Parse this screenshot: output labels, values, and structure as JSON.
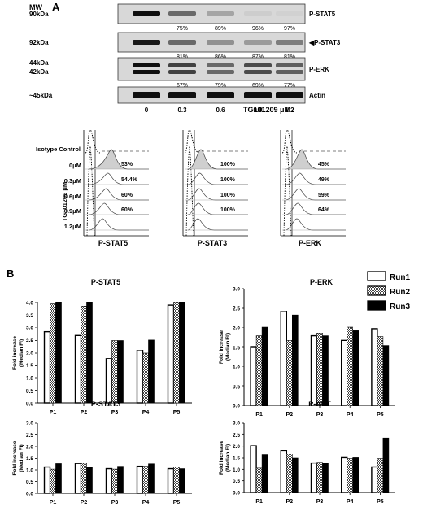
{
  "panelA": {
    "letter": "A",
    "mw_label": "MW",
    "blots": [
      {
        "name": "P-STAT5",
        "mw": "90kDa",
        "pct": [
          "75%",
          "89%",
          "96%",
          "97%"
        ]
      },
      {
        "name": "P-STAT3",
        "mw": "92kDa",
        "pct": [
          "81%",
          "86%",
          "87%",
          "81%"
        ]
      },
      {
        "name": "P-ERK",
        "mw": "44kDa",
        "mw2": "42kDa",
        "pct": [
          "67%",
          "79%",
          "69%",
          "77%"
        ]
      },
      {
        "name": "Actin",
        "mw": "~45kDa",
        "pct": []
      }
    ],
    "doses": [
      "0",
      "0.3",
      "0.6",
      "0.9",
      "1.2"
    ],
    "dose_label": "TG101209 μM",
    "flow": {
      "row_labels": [
        "Isotype Control",
        "0μM",
        "0.3μM",
        "0.6μM",
        "0.9μM",
        "1.2μM"
      ],
      "yaxis_label": "TG101209 μM",
      "panels": [
        {
          "title": "P-STAT5",
          "pct": [
            "53%",
            "54.4%",
            "60%",
            "60%"
          ]
        },
        {
          "title": "P-STAT3",
          "pct": [
            "100%",
            "100%",
            "100%",
            "100%"
          ]
        },
        {
          "title": "P-ERK",
          "pct": [
            "45%",
            "49%",
            "59%",
            "64%"
          ]
        }
      ]
    }
  },
  "panelB": {
    "letter": "B",
    "legend": [
      "Run1",
      "Run2",
      "Run3"
    ],
    "colors": {
      "run1": "#ffffff",
      "run2": "#9a9a9a",
      "run3": "#000000"
    }
  },
  "chart_data": [
    {
      "type": "bar",
      "title": "P-STAT5",
      "categories": [
        "P1",
        "P2",
        "P3",
        "P4",
        "P5"
      ],
      "ylabel": "Fold increase (Median FI)",
      "ylim": [
        0,
        4.0
      ],
      "yticks": [
        "0.0",
        "0.5",
        "1.0",
        "1.5",
        "2.0",
        "2.5",
        "3.0",
        "3.5",
        "4.0"
      ],
      "series": [
        {
          "name": "Run1",
          "values": [
            2.85,
            2.7,
            1.78,
            2.1,
            3.9
          ]
        },
        {
          "name": "Run2",
          "values": [
            3.95,
            3.83,
            2.5,
            2.0,
            4.0
          ]
        },
        {
          "name": "Run3",
          "values": [
            4.0,
            4.0,
            2.5,
            2.52,
            4.0
          ]
        }
      ]
    },
    {
      "type": "bar",
      "title": "P-ERK",
      "categories": [
        "P1",
        "P2",
        "P3",
        "P4",
        "P5"
      ],
      "ylabel": "Fold increase (Median FI)",
      "ylim": [
        0,
        3.0
      ],
      "yticks": [
        "0.0",
        "0.5",
        "1.0",
        "1.5",
        "2.0",
        "2.5",
        "3.0"
      ],
      "series": [
        {
          "name": "Run1",
          "values": [
            1.5,
            2.42,
            1.8,
            1.68,
            1.96
          ]
        },
        {
          "name": "Run2",
          "values": [
            1.8,
            1.68,
            1.85,
            2.02,
            1.78
          ]
        },
        {
          "name": "Run3",
          "values": [
            2.02,
            2.33,
            1.8,
            1.93,
            1.55
          ]
        }
      ]
    },
    {
      "type": "bar",
      "title": "P-STAT3",
      "categories": [
        "P1",
        "P2",
        "P3",
        "P4",
        "P5"
      ],
      "ylabel": "Fold increase (Median FI)",
      "ylim": [
        0,
        3.0
      ],
      "yticks": [
        "0.0",
        "0.5",
        "1.0",
        "1.5",
        "2.0",
        "2.5",
        "3.0"
      ],
      "series": [
        {
          "name": "Run1",
          "values": [
            1.12,
            1.27,
            1.05,
            1.15,
            1.05
          ]
        },
        {
          "name": "Run2",
          "values": [
            1.03,
            1.28,
            1.03,
            1.15,
            1.12
          ]
        },
        {
          "name": "Run3",
          "values": [
            1.26,
            1.12,
            1.15,
            1.25,
            1.05
          ]
        }
      ]
    },
    {
      "type": "bar",
      "title": "P-AKT",
      "categories": [
        "P1",
        "P2",
        "P3",
        "P4",
        "P5"
      ],
      "ylabel": "Fold increase (Median FI)",
      "ylim": [
        0,
        3.0
      ],
      "yticks": [
        "0.0",
        "0.5",
        "1.0",
        "1.5",
        "2.0",
        "2.5",
        "3.0"
      ],
      "series": [
        {
          "name": "Run1",
          "values": [
            2.02,
            1.8,
            1.27,
            1.52,
            1.1
          ]
        },
        {
          "name": "Run2",
          "values": [
            1.05,
            1.65,
            1.3,
            1.48,
            1.48
          ]
        },
        {
          "name": "Run3",
          "values": [
            1.62,
            1.5,
            1.28,
            1.52,
            2.33
          ]
        }
      ]
    }
  ]
}
